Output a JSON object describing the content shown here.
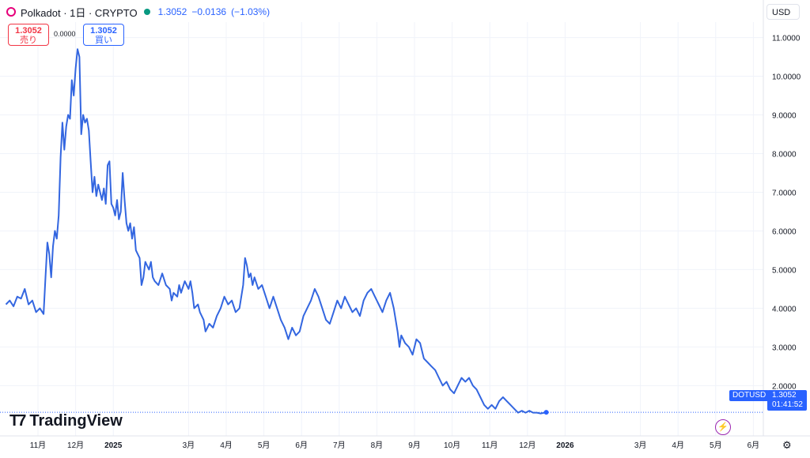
{
  "header": {
    "symbol": "Polkadot · 1日 · CRYPTO",
    "price": "1.3052",
    "change": "−0.0136",
    "change_pct": "(−1.03%)"
  },
  "trade": {
    "sell_price": "1.3052",
    "sell_label": "売り",
    "spread": "0.0000",
    "buy_price": "1.3052",
    "buy_label": "買い"
  },
  "currency": "USD",
  "badge": {
    "symbol": "DOTUSD",
    "price": "1.3052",
    "countdown": "01:41:52"
  },
  "brand": "TradingView",
  "colors": {
    "line": "#3366e0",
    "accent": "#2962ff",
    "sell": "#f23645",
    "live": "#089981"
  },
  "icons": {
    "flash": "lightning-icon",
    "settings": "gear-icon"
  },
  "chart_data": {
    "type": "line",
    "series": [
      {
        "name": "DOTUSD"
      }
    ],
    "ylim": [
      0.7,
      11.4
    ],
    "y_ticks": [
      "11.0000",
      "10.0000",
      "9.0000",
      "8.0000",
      "7.0000",
      "6.0000",
      "5.0000",
      "4.0000",
      "3.0000",
      "2.0000"
    ],
    "y_tick_values": [
      11,
      10,
      9,
      8,
      7,
      6,
      5,
      4,
      3,
      2
    ],
    "x_ticks": [
      {
        "label": "11月",
        "t": 0.0
      },
      {
        "label": "12月",
        "t": 1.0
      },
      {
        "label": "2025",
        "t": 2.0,
        "bold": true
      },
      {
        "label": "3月",
        "t": 4.0
      },
      {
        "label": "4月",
        "t": 5.0
      },
      {
        "label": "5月",
        "t": 6.0
      },
      {
        "label": "6月",
        "t": 7.0
      },
      {
        "label": "7月",
        "t": 8.0
      },
      {
        "label": "8月",
        "t": 9.0
      },
      {
        "label": "9月",
        "t": 10.0
      },
      {
        "label": "10月",
        "t": 11.0
      },
      {
        "label": "11月",
        "t": 12.0
      },
      {
        "label": "12月",
        "t": 13.0
      },
      {
        "label": "2026",
        "t": 14.0,
        "bold": true
      },
      {
        "label": "3月",
        "t": 16.0
      },
      {
        "label": "4月",
        "t": 17.0
      },
      {
        "label": "5月",
        "t": 18.0
      },
      {
        "label": "6月",
        "t": 19.0
      }
    ],
    "points": [
      [
        -0.85,
        4.1
      ],
      [
        -0.75,
        4.2
      ],
      [
        -0.65,
        4.05
      ],
      [
        -0.55,
        4.3
      ],
      [
        -0.45,
        4.25
      ],
      [
        -0.35,
        4.5
      ],
      [
        -0.25,
        4.1
      ],
      [
        -0.15,
        4.2
      ],
      [
        -0.05,
        3.9
      ],
      [
        0.05,
        4.0
      ],
      [
        0.15,
        3.85
      ],
      [
        0.2,
        4.8
      ],
      [
        0.25,
        5.7
      ],
      [
        0.3,
        5.4
      ],
      [
        0.35,
        4.8
      ],
      [
        0.4,
        5.6
      ],
      [
        0.45,
        6.0
      ],
      [
        0.5,
        5.8
      ],
      [
        0.55,
        6.4
      ],
      [
        0.6,
        7.9
      ],
      [
        0.65,
        8.8
      ],
      [
        0.7,
        8.1
      ],
      [
        0.75,
        8.7
      ],
      [
        0.8,
        9.0
      ],
      [
        0.85,
        8.9
      ],
      [
        0.9,
        9.9
      ],
      [
        0.95,
        9.5
      ],
      [
        1.0,
        10.2
      ],
      [
        1.05,
        10.7
      ],
      [
        1.1,
        10.5
      ],
      [
        1.15,
        8.5
      ],
      [
        1.2,
        9.0
      ],
      [
        1.25,
        8.8
      ],
      [
        1.3,
        8.9
      ],
      [
        1.35,
        8.6
      ],
      [
        1.4,
        7.8
      ],
      [
        1.45,
        7.0
      ],
      [
        1.5,
        7.4
      ],
      [
        1.55,
        6.9
      ],
      [
        1.6,
        7.2
      ],
      [
        1.7,
        6.8
      ],
      [
        1.75,
        7.1
      ],
      [
        1.8,
        6.7
      ],
      [
        1.85,
        7.7
      ],
      [
        1.9,
        7.8
      ],
      [
        1.95,
        6.7
      ],
      [
        2.0,
        6.6
      ],
      [
        2.05,
        6.4
      ],
      [
        2.1,
        6.8
      ],
      [
        2.15,
        6.3
      ],
      [
        2.2,
        6.5
      ],
      [
        2.25,
        7.5
      ],
      [
        2.3,
        6.8
      ],
      [
        2.35,
        6.2
      ],
      [
        2.4,
        6.0
      ],
      [
        2.45,
        6.2
      ],
      [
        2.5,
        5.8
      ],
      [
        2.55,
        6.1
      ],
      [
        2.6,
        5.5
      ],
      [
        2.7,
        5.3
      ],
      [
        2.75,
        4.6
      ],
      [
        2.8,
        4.8
      ],
      [
        2.85,
        5.2
      ],
      [
        2.9,
        5.1
      ],
      [
        2.95,
        5.0
      ],
      [
        3.0,
        5.2
      ],
      [
        3.05,
        4.8
      ],
      [
        3.1,
        4.7
      ],
      [
        3.2,
        4.6
      ],
      [
        3.3,
        4.9
      ],
      [
        3.4,
        4.6
      ],
      [
        3.5,
        4.5
      ],
      [
        3.55,
        4.2
      ],
      [
        3.6,
        4.4
      ],
      [
        3.7,
        4.3
      ],
      [
        3.75,
        4.6
      ],
      [
        3.8,
        4.4
      ],
      [
        3.9,
        4.7
      ],
      [
        4.0,
        4.5
      ],
      [
        4.05,
        4.7
      ],
      [
        4.1,
        4.4
      ],
      [
        4.15,
        4.0
      ],
      [
        4.25,
        4.1
      ],
      [
        4.3,
        3.9
      ],
      [
        4.4,
        3.7
      ],
      [
        4.45,
        3.4
      ],
      [
        4.55,
        3.6
      ],
      [
        4.65,
        3.5
      ],
      [
        4.75,
        3.8
      ],
      [
        4.85,
        4.0
      ],
      [
        4.95,
        4.3
      ],
      [
        5.05,
        4.1
      ],
      [
        5.15,
        4.2
      ],
      [
        5.25,
        3.9
      ],
      [
        5.35,
        4.0
      ],
      [
        5.45,
        4.6
      ],
      [
        5.5,
        5.3
      ],
      [
        5.55,
        5.1
      ],
      [
        5.6,
        4.8
      ],
      [
        5.65,
        4.9
      ],
      [
        5.7,
        4.6
      ],
      [
        5.75,
        4.8
      ],
      [
        5.85,
        4.5
      ],
      [
        5.95,
        4.6
      ],
      [
        6.05,
        4.3
      ],
      [
        6.15,
        4.0
      ],
      [
        6.25,
        4.3
      ],
      [
        6.35,
        4.0
      ],
      [
        6.45,
        3.7
      ],
      [
        6.55,
        3.5
      ],
      [
        6.65,
        3.2
      ],
      [
        6.75,
        3.5
      ],
      [
        6.85,
        3.3
      ],
      [
        6.95,
        3.4
      ],
      [
        7.05,
        3.8
      ],
      [
        7.15,
        4.0
      ],
      [
        7.25,
        4.2
      ],
      [
        7.35,
        4.5
      ],
      [
        7.45,
        4.3
      ],
      [
        7.55,
        4.0
      ],
      [
        7.65,
        3.7
      ],
      [
        7.75,
        3.6
      ],
      [
        7.85,
        3.9
      ],
      [
        7.95,
        4.2
      ],
      [
        8.05,
        4.0
      ],
      [
        8.15,
        4.3
      ],
      [
        8.25,
        4.1
      ],
      [
        8.35,
        3.9
      ],
      [
        8.45,
        4.0
      ],
      [
        8.55,
        3.8
      ],
      [
        8.65,
        4.2
      ],
      [
        8.75,
        4.4
      ],
      [
        8.85,
        4.5
      ],
      [
        8.95,
        4.3
      ],
      [
        9.05,
        4.1
      ],
      [
        9.15,
        3.9
      ],
      [
        9.25,
        4.2
      ],
      [
        9.35,
        4.4
      ],
      [
        9.45,
        4.0
      ],
      [
        9.55,
        3.4
      ],
      [
        9.6,
        3.0
      ],
      [
        9.65,
        3.3
      ],
      [
        9.75,
        3.1
      ],
      [
        9.85,
        3.0
      ],
      [
        9.95,
        2.8
      ],
      [
        10.05,
        3.2
      ],
      [
        10.15,
        3.1
      ],
      [
        10.25,
        2.7
      ],
      [
        10.35,
        2.6
      ],
      [
        10.45,
        2.5
      ],
      [
        10.55,
        2.4
      ],
      [
        10.65,
        2.2
      ],
      [
        10.75,
        2.0
      ],
      [
        10.85,
        2.1
      ],
      [
        10.95,
        1.9
      ],
      [
        11.05,
        1.8
      ],
      [
        11.15,
        2.0
      ],
      [
        11.25,
        2.2
      ],
      [
        11.35,
        2.1
      ],
      [
        11.45,
        2.2
      ],
      [
        11.55,
        2.0
      ],
      [
        11.65,
        1.9
      ],
      [
        11.75,
        1.7
      ],
      [
        11.85,
        1.5
      ],
      [
        11.95,
        1.4
      ],
      [
        12.05,
        1.5
      ],
      [
        12.15,
        1.4
      ],
      [
        12.25,
        1.6
      ],
      [
        12.35,
        1.7
      ],
      [
        12.45,
        1.6
      ],
      [
        12.55,
        1.5
      ],
      [
        12.65,
        1.4
      ],
      [
        12.75,
        1.3
      ],
      [
        12.85,
        1.35
      ],
      [
        12.95,
        1.3
      ],
      [
        13.05,
        1.35
      ],
      [
        13.15,
        1.3
      ],
      [
        13.25,
        1.3
      ],
      [
        13.35,
        1.28
      ],
      [
        13.45,
        1.3
      ],
      [
        13.5,
        1.31
      ]
    ]
  }
}
